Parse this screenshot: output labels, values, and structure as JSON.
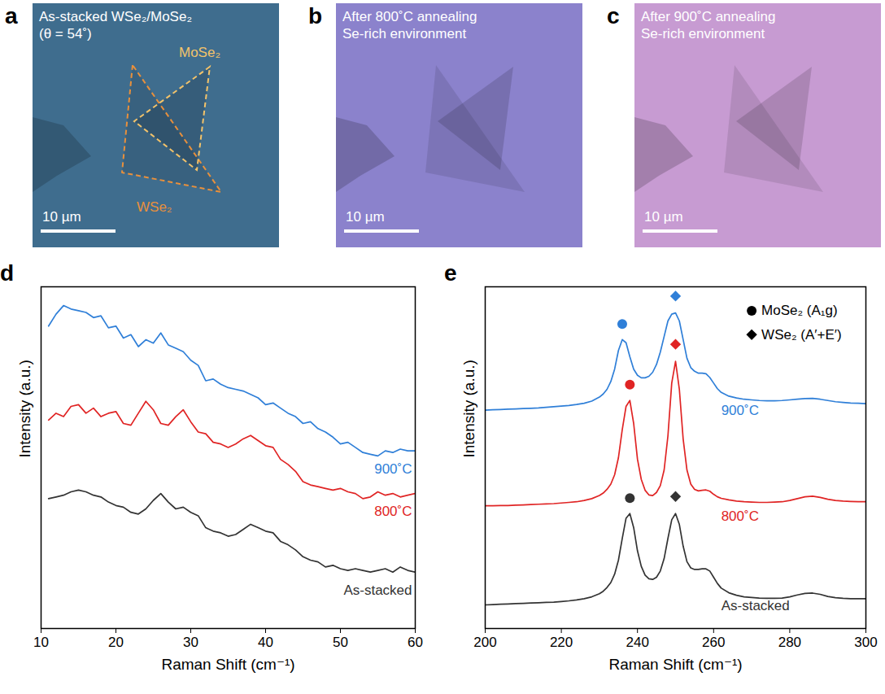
{
  "chart_data": [
    {
      "type": "line",
      "panel": "d",
      "xlabel": "Raman Shift (cm⁻¹)",
      "ylabel": "Intensity (a.u.)",
      "x": [
        11,
        12,
        13,
        14,
        15,
        16,
        17,
        18,
        19,
        20,
        21,
        22,
        23,
        24,
        25,
        26,
        27,
        28,
        29,
        30,
        31,
        32,
        33,
        34,
        35,
        36,
        37,
        38,
        39,
        40,
        41,
        42,
        43,
        44,
        45,
        46,
        47,
        48,
        49,
        50,
        51,
        52,
        53,
        54,
        55,
        56,
        57,
        58,
        59,
        60
      ],
      "series": [
        {
          "name": "900˚C",
          "color": "#2f7fd8",
          "values": [
            8.85,
            9.2,
            9.45,
            9.35,
            9.3,
            9.25,
            9.1,
            9.15,
            8.8,
            8.85,
            8.5,
            8.6,
            8.25,
            8.45,
            8.35,
            8.65,
            8.3,
            8.2,
            8.1,
            7.85,
            7.7,
            7.25,
            7.3,
            7.15,
            7.05,
            7.0,
            6.95,
            6.85,
            6.75,
            6.55,
            6.6,
            6.45,
            6.3,
            6.2,
            6.0,
            6.05,
            5.85,
            5.75,
            5.6,
            5.4,
            5.45,
            5.3,
            5.15,
            5.1,
            5.05,
            5.2,
            5.15,
            5.25,
            5.2,
            5.2
          ]
        },
        {
          "name": "800˚C",
          "color": "#e02424",
          "values": [
            6.1,
            6.3,
            6.2,
            6.5,
            6.55,
            6.3,
            6.45,
            6.2,
            6.3,
            6.35,
            6.0,
            5.95,
            6.3,
            6.65,
            6.4,
            6.0,
            5.95,
            6.2,
            6.4,
            6.05,
            5.75,
            5.7,
            5.45,
            5.4,
            5.3,
            5.4,
            5.55,
            5.65,
            5.5,
            5.35,
            5.3,
            4.95,
            4.8,
            4.6,
            4.3,
            4.2,
            4.15,
            4.1,
            4.05,
            4.1,
            4.0,
            3.95,
            3.8,
            3.85,
            4.0,
            3.9,
            3.95,
            3.85,
            3.9,
            3.95
          ]
        },
        {
          "name": "As-stacked",
          "color": "#333333",
          "values": [
            3.8,
            3.85,
            3.9,
            4.0,
            4.05,
            4.0,
            3.9,
            3.85,
            3.7,
            3.6,
            3.55,
            3.4,
            3.35,
            3.5,
            3.75,
            3.95,
            3.7,
            3.5,
            3.55,
            3.4,
            3.3,
            2.95,
            2.85,
            2.8,
            2.7,
            2.75,
            2.9,
            3.05,
            2.95,
            2.85,
            2.8,
            2.55,
            2.45,
            2.3,
            2.1,
            2.0,
            1.95,
            1.8,
            1.85,
            1.75,
            1.7,
            1.75,
            1.7,
            1.65,
            1.7,
            1.75,
            1.65,
            1.8,
            1.7,
            1.65
          ]
        }
      ],
      "xlim": [
        10,
        60
      ],
      "xticks": [
        10,
        20,
        30,
        40,
        50,
        60
      ],
      "ylim": [
        0,
        10
      ],
      "grid": false,
      "tick_labels": "x"
    },
    {
      "type": "line",
      "panel": "e",
      "xlabel": "Raman Shift (cm⁻¹)",
      "ylabel": "Intensity (a.u.)",
      "x": [
        200,
        202,
        204,
        206,
        208,
        210,
        212,
        214,
        216,
        218,
        220,
        222,
        224,
        226,
        228,
        230,
        231,
        232,
        233,
        234,
        235,
        236,
        237,
        238,
        239,
        240,
        241,
        242,
        243,
        244,
        245,
        246,
        247,
        248,
        249,
        250,
        251,
        252,
        253,
        254,
        255,
        256,
        257,
        258,
        259,
        260,
        261,
        262,
        264,
        266,
        268,
        270,
        272,
        274,
        276,
        278,
        280,
        282,
        284,
        286,
        288,
        290,
        292,
        294,
        296,
        298,
        300
      ],
      "series": [
        {
          "name": "900˚C",
          "color": "#2f7fd8",
          "values": [
            6.53,
            6.54,
            6.55,
            6.56,
            6.57,
            6.58,
            6.59,
            6.6,
            6.62,
            6.64,
            6.66,
            6.68,
            6.71,
            6.75,
            6.82,
            6.95,
            7.05,
            7.2,
            7.45,
            7.85,
            8.45,
            8.8,
            8.7,
            8.25,
            7.85,
            7.65,
            7.57,
            7.57,
            7.62,
            7.75,
            8.0,
            8.4,
            8.9,
            9.4,
            9.62,
            9.66,
            9.4,
            8.8,
            8.2,
            7.9,
            7.78,
            7.72,
            7.72,
            7.7,
            7.58,
            7.4,
            7.22,
            7.1,
            6.98,
            6.92,
            6.88,
            6.86,
            6.84,
            6.83,
            6.83,
            6.84,
            6.86,
            6.88,
            6.9,
            6.91,
            6.88,
            6.84,
            6.8,
            6.78,
            6.76,
            6.75,
            6.74
          ],
          "peaks": [
            {
              "x": 236,
              "y": 9.3,
              "marker": "circle"
            },
            {
              "x": 250,
              "y": 10.2,
              "marker": "diamond"
            }
          ]
        },
        {
          "name": "800˚C",
          "color": "#e02424",
          "values": [
            3.45,
            3.45,
            3.46,
            3.46,
            3.47,
            3.48,
            3.49,
            3.5,
            3.51,
            3.52,
            3.54,
            3.56,
            3.58,
            3.62,
            3.68,
            3.78,
            3.86,
            3.98,
            4.15,
            4.45,
            5.0,
            5.9,
            6.65,
            6.84,
            6.1,
            4.95,
            4.3,
            3.95,
            3.8,
            3.78,
            3.88,
            4.1,
            4.6,
            5.7,
            7.4,
            8.1,
            7.2,
            5.6,
            4.6,
            4.15,
            3.98,
            3.93,
            3.95,
            3.96,
            3.92,
            3.82,
            3.74,
            3.69,
            3.64,
            3.6,
            3.58,
            3.57,
            3.56,
            3.56,
            3.57,
            3.58,
            3.62,
            3.68,
            3.74,
            3.76,
            3.72,
            3.66,
            3.62,
            3.6,
            3.59,
            3.58,
            3.58
          ],
          "peaks": [
            {
              "x": 238,
              "y": 7.35,
              "marker": "circle"
            },
            {
              "x": 250,
              "y": 8.65,
              "marker": "diamond"
            }
          ]
        },
        {
          "name": "As-stacked",
          "color": "#333333",
          "values": [
            0.26,
            0.27,
            0.28,
            0.29,
            0.3,
            0.31,
            0.32,
            0.33,
            0.34,
            0.35,
            0.37,
            0.39,
            0.42,
            0.46,
            0.52,
            0.62,
            0.7,
            0.82,
            0.98,
            1.25,
            1.7,
            2.4,
            3.05,
            3.2,
            2.75,
            2.0,
            1.5,
            1.22,
            1.1,
            1.08,
            1.15,
            1.35,
            1.75,
            2.4,
            3.0,
            3.2,
            2.85,
            2.15,
            1.65,
            1.45,
            1.4,
            1.4,
            1.42,
            1.42,
            1.35,
            1.15,
            0.95,
            0.8,
            0.65,
            0.57,
            0.52,
            0.5,
            0.48,
            0.47,
            0.47,
            0.48,
            0.52,
            0.58,
            0.63,
            0.64,
            0.6,
            0.53,
            0.49,
            0.47,
            0.46,
            0.46,
            0.46
          ],
          "peaks": [
            {
              "x": 238,
              "y": 3.7,
              "marker": "circle"
            },
            {
              "x": 250,
              "y": 3.75,
              "marker": "diamond"
            }
          ]
        }
      ],
      "markers": [
        {
          "name": "MoSe₂ (A₁g)",
          "marker": "circle",
          "color": "#000000"
        },
        {
          "name": "WSe₂ (A′+E′)",
          "marker": "diamond",
          "color": "#000000"
        }
      ],
      "legend": "top-right",
      "xlim": [
        200,
        300
      ],
      "xticks": [
        200,
        220,
        240,
        260,
        280,
        300
      ],
      "ylim": [
        -0.5,
        10.5
      ],
      "grid": false,
      "tick_labels": "x"
    }
  ],
  "images": [
    {
      "panel": "a",
      "lines": [
        "As-stacked WSe₂/MoSe₂",
        "(θ = 54˚)"
      ],
      "labels": [
        "MoSe₂",
        "WSe₂"
      ],
      "scale_bar": "10 µm",
      "color": "#3f6d8e"
    },
    {
      "panel": "b",
      "lines": [
        "After 800˚C annealing",
        "Se-rich environment"
      ],
      "scale_bar": "10 µm",
      "color": "#8b82cc"
    },
    {
      "panel": "c",
      "lines": [
        "After 900˚C annealing",
        "Se-rich environment"
      ],
      "scale_bar": "10 µm",
      "color": "#c79bd2"
    }
  ]
}
